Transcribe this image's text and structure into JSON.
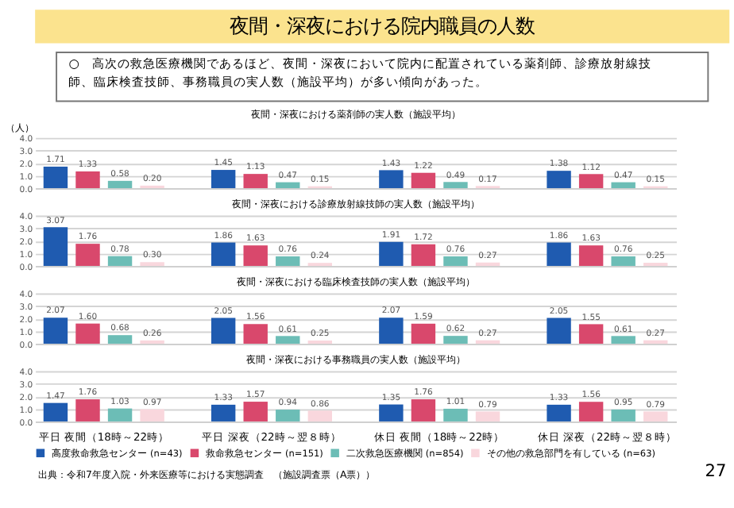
{
  "chart_data": [
    {
      "type": "other",
      "title": "夜間・深夜における院内職員の人数",
      "annotations": [
        "○　高次の救急医療機関であるほど、夜間・深夜において院内に配置されている薬剤師、診療放射線技師、臨床検査技師、事務職員の実人数（施設平均）が多い傾向があった。"
      ]
    },
    {
      "type": "bar",
      "title": "夜間・深夜における薬剤師の実人数（施設平均）",
      "ylabel": "（人）",
      "categories": [
        null,
        null,
        null,
        null
      ],
      "series": [
        {
          "color": "#1f5bb0",
          "values": [
            1.71,
            1.45,
            1.43,
            1.38
          ],
          "value_labels": [
            "1.71",
            "1.45",
            "1.43",
            "1.38"
          ]
        },
        {
          "color": "#d9486c",
          "values": [
            1.33,
            1.13,
            1.22,
            1.12
          ],
          "value_labels": [
            "1.33",
            "1.13",
            "1.22",
            "1.12"
          ]
        },
        {
          "color": "#6cbdb6",
          "values": [
            0.58,
            0.47,
            0.49,
            0.47
          ],
          "value_labels": [
            "0.58",
            "0.47",
            "0.49",
            "0.47"
          ]
        },
        {
          "color": "#f9d7dd",
          "values": [
            0.2,
            0.15,
            0.17,
            0.15
          ],
          "value_labels": [
            "0.20",
            "0.15",
            "0.17",
            "0.15"
          ]
        }
      ],
      "ylim": [
        0,
        4
      ],
      "yticks": [
        {
          "value": 0,
          "label": "0.0"
        },
        {
          "value": 1,
          "label": "1.0"
        },
        {
          "value": 2,
          "label": "2.0"
        },
        {
          "value": 3,
          "label": "3.0"
        },
        {
          "value": 4,
          "label": "4.0"
        }
      ],
      "grid": "y",
      "tick_labels": "y"
    },
    {
      "type": "bar",
      "title": "夜間・深夜における診療放射線技師の実人数（施設平均）",
      "categories": [
        null,
        null,
        null,
        null
      ],
      "series": [
        {
          "color": "#1f5bb0",
          "values": [
            3.07,
            1.86,
            1.91,
            1.86
          ],
          "value_labels": [
            "3.07",
            "1.86",
            "1.91",
            "1.86"
          ]
        },
        {
          "color": "#d9486c",
          "values": [
            1.76,
            1.63,
            1.72,
            1.63
          ],
          "value_labels": [
            "1.76",
            "1.63",
            "1.72",
            "1.63"
          ]
        },
        {
          "color": "#6cbdb6",
          "values": [
            0.78,
            0.76,
            0.76,
            0.76
          ],
          "value_labels": [
            "0.78",
            "0.76",
            "0.76",
            "0.76"
          ]
        },
        {
          "color": "#f9d7dd",
          "values": [
            0.3,
            0.24,
            0.27,
            0.25
          ],
          "value_labels": [
            "0.30",
            "0.24",
            "0.27",
            "0.25"
          ]
        }
      ],
      "ylim": [
        0,
        4
      ],
      "yticks": [
        {
          "value": 0,
          "label": "0.0"
        },
        {
          "value": 1,
          "label": "1.0"
        },
        {
          "value": 2,
          "label": "2.0"
        },
        {
          "value": 3,
          "label": "3.0"
        },
        {
          "value": 4,
          "label": "4.0"
        }
      ],
      "grid": "y",
      "tick_labels": "y"
    },
    {
      "type": "bar",
      "title": "夜間・深夜における臨床検査技師の実人数（施設平均）",
      "categories": [
        null,
        null,
        null,
        null
      ],
      "series": [
        {
          "color": "#1f5bb0",
          "values": [
            2.07,
            2.05,
            2.07,
            2.05
          ],
          "value_labels": [
            "2.07",
            "2.05",
            "2.07",
            "2.05"
          ]
        },
        {
          "color": "#d9486c",
          "values": [
            1.6,
            1.56,
            1.59,
            1.55
          ],
          "value_labels": [
            "1.60",
            "1.56",
            "1.59",
            "1.55"
          ]
        },
        {
          "color": "#6cbdb6",
          "values": [
            0.68,
            0.61,
            0.62,
            0.61
          ],
          "value_labels": [
            "0.68",
            "0.61",
            "0.62",
            "0.61"
          ]
        },
        {
          "color": "#f9d7dd",
          "values": [
            0.26,
            0.25,
            0.27,
            0.27
          ],
          "value_labels": [
            "0.26",
            "0.25",
            "0.27",
            "0.27"
          ]
        }
      ],
      "ylim": [
        0,
        4
      ],
      "yticks": [
        {
          "value": 0,
          "label": "0.0"
        },
        {
          "value": 1,
          "label": "1.0"
        },
        {
          "value": 2,
          "label": "2.0"
        },
        {
          "value": 3,
          "label": "3.0"
        },
        {
          "value": 4,
          "label": "4.0"
        }
      ],
      "grid": "y",
      "tick_labels": "y"
    },
    {
      "type": "bar",
      "title": "夜間・深夜における事務職員の実人数（施設平均）",
      "categories": [
        "平日 夜間（18時～22時）",
        "平日 深夜（22時～翌８時）",
        "休日 夜間（18時～22時）",
        "休日 深夜（22時～翌８時）"
      ],
      "series": [
        {
          "name": "高度救命救急センター (n=43)",
          "color": "#1f5bb0",
          "values": [
            1.47,
            1.33,
            1.35,
            1.33
          ],
          "value_labels": [
            "1.47",
            "1.33",
            "1.35",
            "1.33"
          ]
        },
        {
          "name": "救命救急センター (n=151)",
          "color": "#d9486c",
          "values": [
            1.76,
            1.57,
            1.76,
            1.56
          ],
          "value_labels": [
            "1.76",
            "1.57",
            "1.76",
            "1.56"
          ]
        },
        {
          "name": "二次救急医療機関 (n=854)",
          "color": "#6cbdb6",
          "values": [
            1.03,
            0.94,
            1.01,
            0.95
          ],
          "value_labels": [
            "1.03",
            "0.94",
            "1.01",
            "0.95"
          ]
        },
        {
          "name": "その他の救急部門を有している (n=63)",
          "color": "#f9d7dd",
          "values": [
            0.97,
            0.86,
            0.79,
            0.79
          ],
          "value_labels": [
            "0.97",
            "0.86",
            "0.79",
            "0.79"
          ]
        }
      ],
      "ylim": [
        0,
        4
      ],
      "yticks": [
        {
          "value": 0,
          "label": "0.0"
        },
        {
          "value": 1,
          "label": "1.0"
        },
        {
          "value": 2,
          "label": "2.0"
        },
        {
          "value": 3,
          "label": "3.0"
        },
        {
          "value": 4,
          "label": "4.0"
        }
      ],
      "grid": "y",
      "legend": "bottom",
      "annotations": [
        "出典：令和7年度入院・外来医療等における実態調査　（施設調査票（A票））",
        "27"
      ]
    }
  ]
}
